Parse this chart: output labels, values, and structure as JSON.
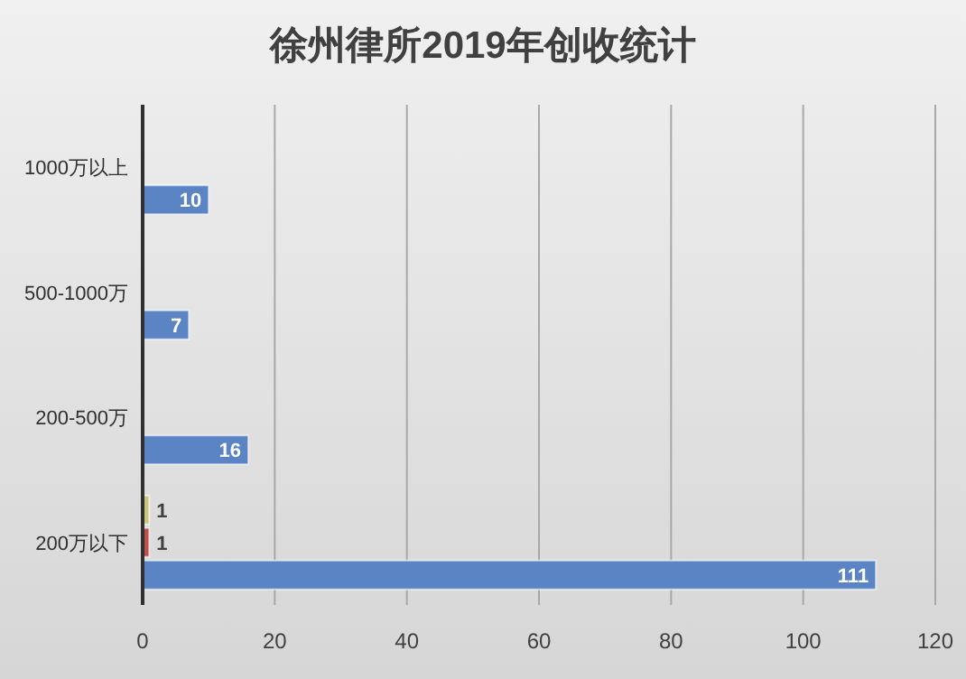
{
  "chart_data": {
    "type": "bar",
    "orientation": "horizontal",
    "title": "徐州律所2019年创收统计",
    "categories": [
      "1000万以上",
      "500-1000万",
      "200-500万",
      "200万以下"
    ],
    "series": [
      {
        "color": "#5b84c4",
        "values": [
          10,
          7,
          16,
          111
        ]
      },
      {
        "color": "#c0504d",
        "values": [
          null,
          null,
          null,
          1
        ]
      },
      {
        "color": "#c9c77e",
        "values": [
          null,
          null,
          null,
          1
        ]
      }
    ],
    "xlim": [
      0,
      120
    ],
    "xticks": [
      0,
      20,
      40,
      60,
      80,
      100,
      120
    ],
    "grid": "x",
    "data_labels": true
  }
}
